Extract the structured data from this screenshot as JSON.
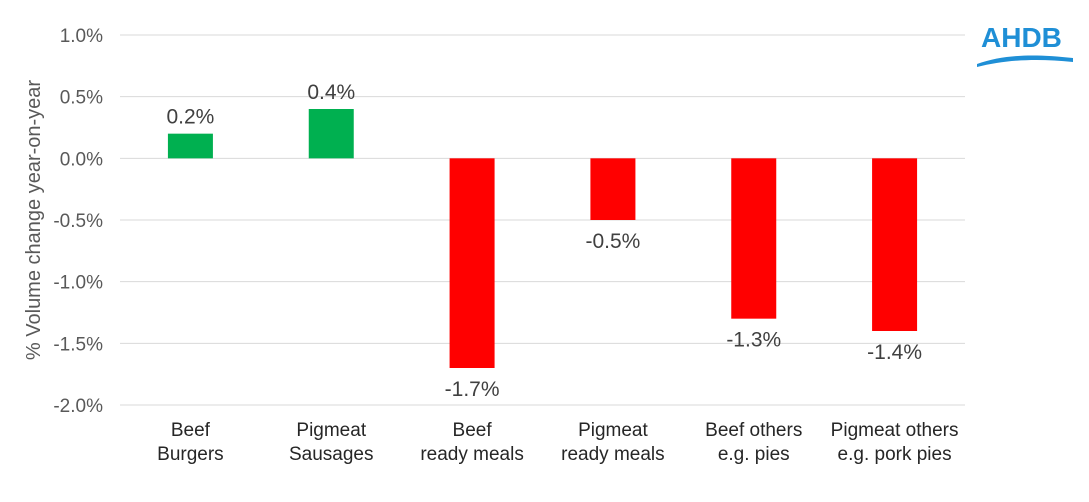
{
  "logo": {
    "text": "AHDB",
    "color": "#1f8fd6"
  },
  "chart_data": {
    "type": "bar",
    "title": "",
    "xlabel": "",
    "ylabel": "% Volume change  year-on-year",
    "ylim": [
      -2.0,
      1.0
    ],
    "yticks": [
      1.0,
      0.5,
      0.0,
      -0.5,
      -1.0,
      -1.5,
      -2.0
    ],
    "ytick_labels": [
      "1.0%",
      "0.5%",
      "0.0%",
      "-0.5%",
      "-1.0%",
      "-1.5%",
      "-2.0%"
    ],
    "grid": true,
    "categories": [
      [
        "Beef",
        "Burgers"
      ],
      [
        "Pigmeat",
        "Sausages"
      ],
      [
        "Beef",
        "ready meals"
      ],
      [
        "Pigmeat",
        "ready meals"
      ],
      [
        "Beef others",
        "e.g. pies"
      ],
      [
        "Pigmeat others",
        "e.g. pork pies"
      ]
    ],
    "values": [
      0.2,
      0.4,
      -1.7,
      -0.5,
      -1.3,
      -1.4
    ],
    "data_labels": [
      "0.2%",
      "0.4%",
      "-1.7%",
      "-0.5%",
      "-1.3%",
      "-1.4%"
    ],
    "colors": {
      "positive": "#00b050",
      "negative": "#ff0000",
      "grid": "#d9d9d9",
      "axis_text": "#595959",
      "label_text": "#404040"
    }
  }
}
